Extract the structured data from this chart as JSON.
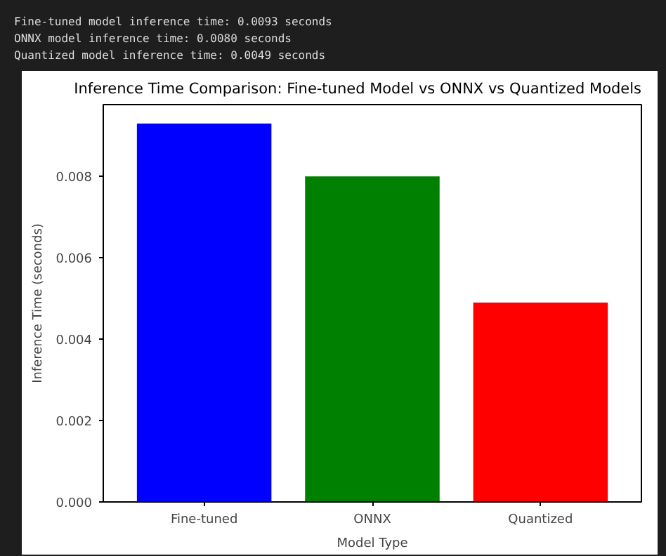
{
  "chart_data": {
    "type": "bar",
    "title": "Inference Time Comparison: Fine-tuned Model vs ONNX vs Quantized Models",
    "xlabel": "Model Type",
    "ylabel": "Inference Time (seconds)",
    "categories": [
      "Fine-tuned",
      "ONNX",
      "Quantized"
    ],
    "values": [
      0.0093,
      0.008,
      0.0049
    ],
    "colors": [
      "#0000ff",
      "#008000",
      "#ff0000"
    ],
    "ylim": [
      0,
      0.009765
    ],
    "yticks": [
      {
        "value": 0,
        "label": "0.000"
      },
      {
        "value": 0.002,
        "label": "0.002"
      },
      {
        "value": 0.004,
        "label": "0.004"
      },
      {
        "value": 0.006,
        "label": "0.006"
      },
      {
        "value": 0.008,
        "label": "0.008"
      }
    ],
    "grid": false,
    "annotations": [
      "Fine-tuned model inference time: 0.0093 seconds",
      "ONNX model inference time: 0.0080 seconds",
      "Quantized model inference time: 0.0049 seconds"
    ]
  }
}
